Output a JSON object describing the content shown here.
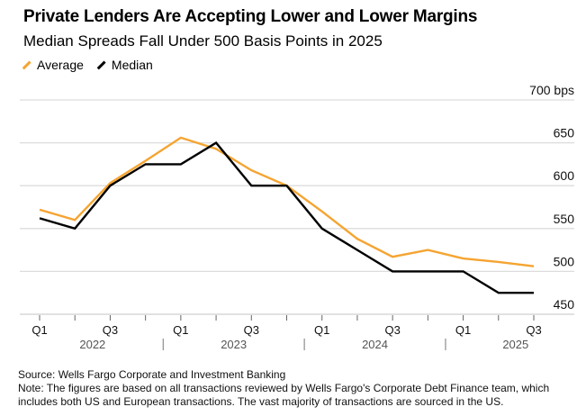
{
  "chart_data": {
    "type": "line",
    "title": "Private Lenders Are Accepting Lower and Lower Margins",
    "subtitle": "Median Spreads Fall Under 500 Basis Points in 2025",
    "xlabel": "",
    "ylabel": "bps",
    "x": [
      "Q1 2022",
      "Q2 2022",
      "Q3 2022",
      "Q4 2022",
      "Q1 2023",
      "Q2 2023",
      "Q3 2023",
      "Q4 2023",
      "Q1 2024",
      "Q2 2024",
      "Q3 2024",
      "Q4 2024",
      "Q1 2025",
      "Q2 2025",
      "Q3 2025"
    ],
    "x_tick_labels": [
      "Q1",
      "",
      "Q3",
      "",
      "Q1",
      "",
      "Q3",
      "",
      "Q1",
      "",
      "Q3",
      "",
      "Q1",
      "",
      "Q3"
    ],
    "year_labels": [
      "2022",
      "2023",
      "2024",
      "2025"
    ],
    "ylim": [
      450,
      700
    ],
    "y_ticks": [
      450,
      500,
      550,
      600,
      650,
      700
    ],
    "y_tick_labels": [
      "450",
      "500",
      "550",
      "600",
      "650",
      "700 bps"
    ],
    "grid": true,
    "legend_position": "top-left",
    "series": [
      {
        "name": "Average",
        "color": "#f5a431",
        "values": [
          572,
          560,
          603,
          629,
          656,
          643,
          618,
          600,
          570,
          538,
          517,
          525,
          515,
          511,
          506
        ]
      },
      {
        "name": "Median",
        "color": "#000000",
        "values": [
          562,
          550,
          600,
          625,
          625,
          650,
          600,
          600,
          550,
          525,
          500,
          500,
          500,
          475,
          475
        ]
      }
    ]
  },
  "footer": {
    "source": "Source: Wells Fargo Corporate and Investment Banking",
    "note_line1": "Note: The figures are based on all transactions reviewed by Wells Fargo's Corporate Debt Finance team, which",
    "note_line2": "includes both US and European transactions. The vast majority of transactions are sourced in the US."
  }
}
